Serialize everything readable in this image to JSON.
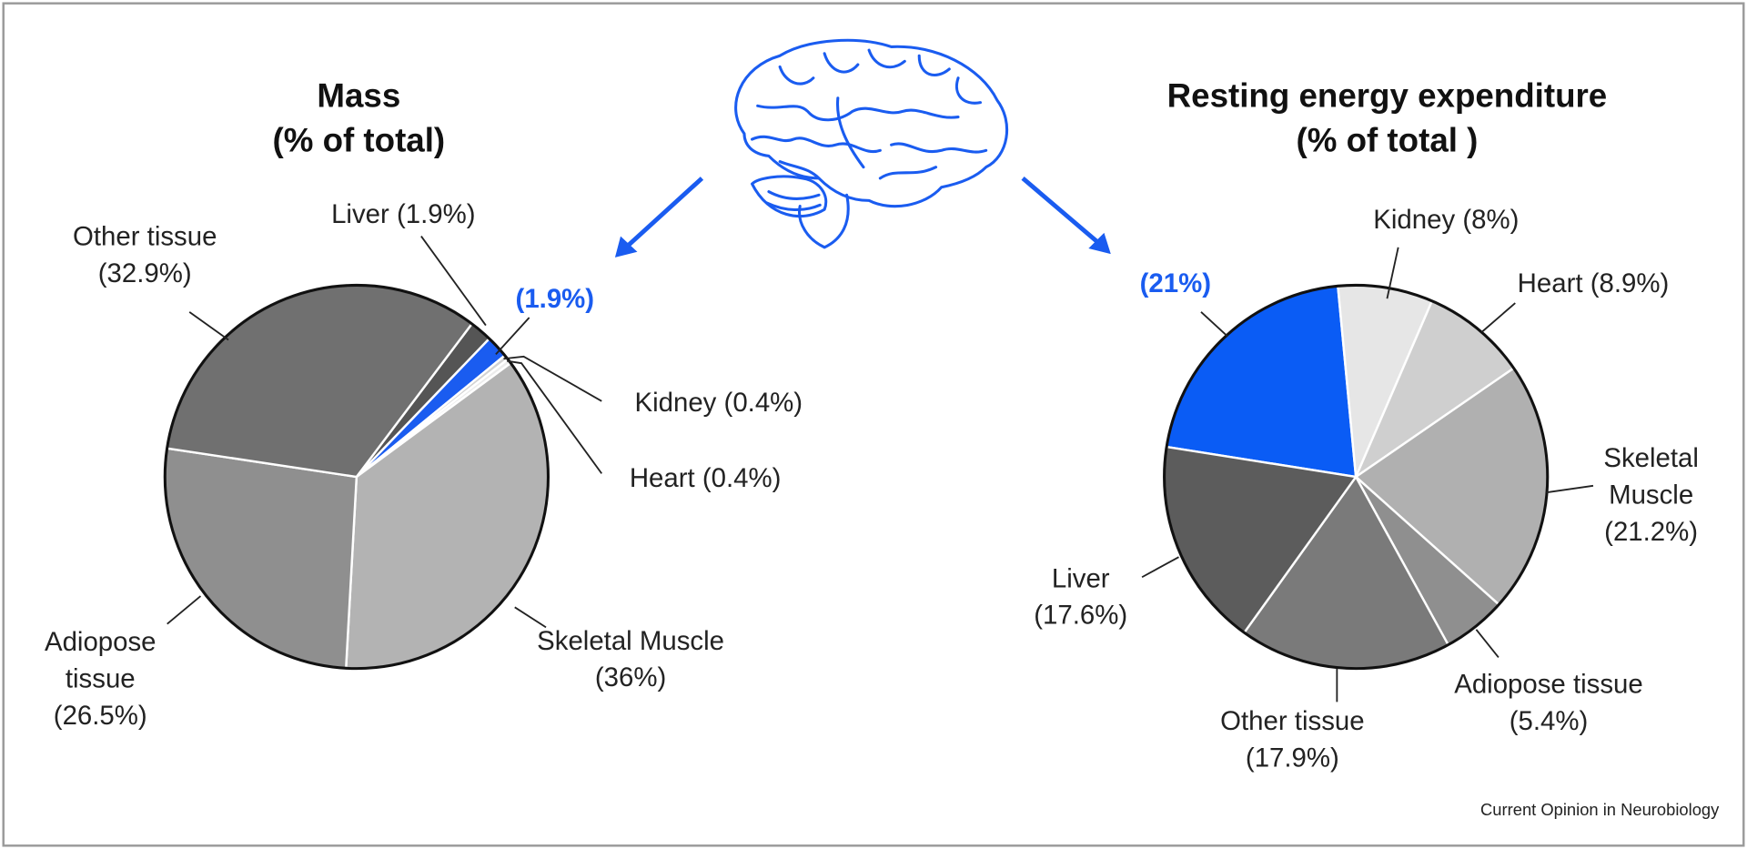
{
  "chart_data": [
    {
      "type": "pie",
      "title": "Mass",
      "subtitle": "(% of total)",
      "categories": [
        "Liver",
        null,
        "Kidney",
        "Heart",
        "Skeletal Muscle",
        "Adiopose tissue",
        "Other tissue"
      ],
      "values": [
        1.9,
        1.9,
        0.4,
        0.4,
        36,
        26.5,
        32.9
      ],
      "value_labels": [
        "(1.9%)",
        "(1.9%)",
        "(0.4%)",
        "(0.4%)",
        "(36%)",
        "(26.5%)",
        "(32.9%)"
      ],
      "colors": [
        "#555555",
        "#1a5cf0",
        "#d2d2d2",
        "#ececec",
        "#b3b3b3",
        "#8f8f8f",
        "#707070"
      ]
    },
    {
      "type": "pie",
      "title": "Resting energy expenditure",
      "subtitle": "(% of total )",
      "categories": [
        null,
        "Kidney",
        "Heart",
        "Skeletal Muscle",
        "Adiopose tissue",
        "Other tissue",
        "Liver"
      ],
      "values": [
        21,
        8,
        8.9,
        21.2,
        5.4,
        17.9,
        17.6
      ],
      "value_labels": [
        "(21%)",
        "(8%)",
        "(8.9%)",
        "(21.2%)",
        "(5.4%)",
        "(17.9%)",
        "(17.6%)"
      ],
      "colors": [
        "#0a5cf5",
        "#e6e6e6",
        "#cfcfcf",
        "#b0b0b0",
        "#8f8f8f",
        "#7a7a7a",
        "#5c5c5c"
      ]
    }
  ],
  "source": "Current Opinion in Neurobiology"
}
